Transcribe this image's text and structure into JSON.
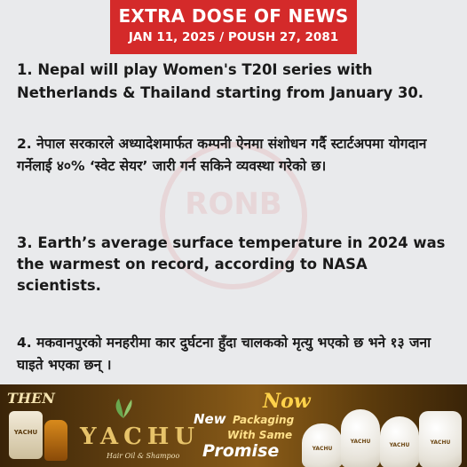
{
  "header": {
    "title": "EXTRA DOSE OF NEWS",
    "date": "JAN 11, 2025 / POUSH 27, 2081"
  },
  "watermark": {
    "text": "RONB"
  },
  "news": [
    "1. Nepal will play Women's T20I series with Netherlands & Thailand starting from January 30.",
    "2. नेपाल सरकारले अध्यादेशमार्फत कम्पनी ऐनमा संशोधन गर्दै स्टार्टअपमा योगदान गर्नेलाई ४०% ‘स्वेट सेयर’ जारी गर्न सकिने व्यवस्था गरेको छ।",
    "3. Earth’s average surface temperature in 2024 was the warmest on record, according to NASA scientists.",
    "4. मकवानपुरको मनहरीमा कार दुर्घटना हुँदा चालकको मृत्यु भएको छ भने १३ जना घाइते भएका छन् ।"
  ],
  "ad": {
    "then": "THEN",
    "jar_label": "YACHU",
    "brand": "YACHU",
    "tagline": "Hair Oil & Shampoo",
    "now": "Now",
    "new": "New",
    "packaging": "Packaging",
    "with_same": "With Same",
    "promise": "Promise",
    "product_labels": [
      "YACHU",
      "YACHU",
      "YACHU",
      "YACHU"
    ]
  },
  "colors": {
    "header_bg": "#d42a2a",
    "page_bg": "#e9eaec",
    "text": "#1a1a1a",
    "gold": "#e7c36a"
  }
}
